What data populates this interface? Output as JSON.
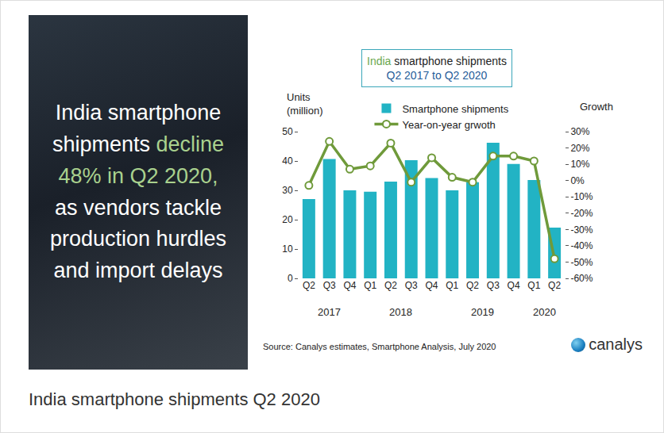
{
  "panel": {
    "text_before": "India smartphone shipments",
    "highlight": "decline 48% in Q2 2020,",
    "text_after": "as vendors tackle production hurdles and import delays"
  },
  "caption": "India smartphone shipments Q2 2020",
  "chart_data": {
    "type": "bar",
    "title": "India smartphone shipments",
    "title_highlight": "India",
    "subtitle": "Q2 2017 to Q2 2020",
    "categories": [
      "Q2",
      "Q3",
      "Q4",
      "Q1",
      "Q2",
      "Q3",
      "Q4",
      "Q1",
      "Q2",
      "Q3",
      "Q4",
      "Q1",
      "Q2"
    ],
    "x_groups": [
      {
        "label": "2017",
        "start": 0,
        "end": 2
      },
      {
        "label": "2018",
        "start": 3,
        "end": 6
      },
      {
        "label": "2019",
        "start": 7,
        "end": 10
      },
      {
        "label": "2020",
        "start": 11,
        "end": 12
      }
    ],
    "y_label": "Units (million)",
    "y2_label": "Growth",
    "series": [
      {
        "name": "Smartphone shipments",
        "type": "bar",
        "color": "#22b3c4",
        "values": [
          27,
          40.7,
          30,
          29.5,
          33,
          40.3,
          34.2,
          30,
          32.8,
          46.2,
          39,
          33.5,
          17.3
        ]
      },
      {
        "name": "Year-on-year grwoth",
        "type": "line",
        "axis": "y2",
        "color": "#6f9a3a",
        "marker": "circle",
        "line_style": "solid",
        "values": [
          -3,
          24,
          7,
          9,
          23,
          -1,
          14,
          2,
          -1,
          15,
          15,
          12,
          -48
        ]
      }
    ],
    "ylim": [
      0,
      50
    ],
    "yticks": [
      0,
      10,
      20,
      30,
      40,
      50
    ],
    "y2lim": [
      -60,
      30
    ],
    "y2ticks": [
      {
        "value": -60,
        "label": "-60%"
      },
      {
        "value": -50,
        "label": "-50%"
      },
      {
        "value": -40,
        "label": "-40%"
      },
      {
        "value": -30,
        "label": "-30%"
      },
      {
        "value": -20,
        "label": "-20%"
      },
      {
        "value": -10,
        "label": "-10%"
      },
      {
        "value": 0,
        "label": "0%"
      },
      {
        "value": 10,
        "label": "10%"
      },
      {
        "value": 20,
        "label": "20%"
      },
      {
        "value": 30,
        "label": "30%"
      }
    ],
    "grid": false,
    "legend": "top",
    "source": "Source: Canalys estimates, Smartphone Analysis, July 2020",
    "logo": "canalys"
  }
}
